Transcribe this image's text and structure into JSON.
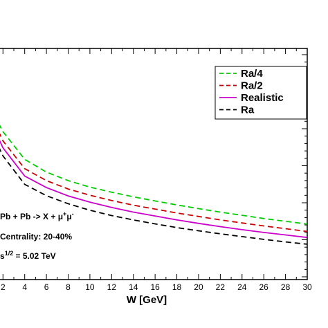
{
  "chart_data": {
    "type": "line",
    "xlabel": "W [GeV]",
    "xlim": [
      1.6,
      30
    ],
    "x_ticks": [
      2,
      4,
      6,
      8,
      10,
      12,
      14,
      16,
      18,
      20,
      22,
      24,
      26,
      28,
      30
    ],
    "ylim": [
      0,
      1
    ],
    "grid": false,
    "legend_position": "top-right",
    "series": [
      {
        "name": "Ra/4",
        "color": "#00cc00",
        "dash": "dashed",
        "x": [
          1.6,
          2,
          4,
          6,
          8,
          10,
          12,
          14,
          16,
          18,
          20,
          22,
          24,
          26,
          28,
          30
        ],
        "y": [
          0.675,
          0.64,
          0.52,
          0.465,
          0.428,
          0.4,
          0.378,
          0.358,
          0.34,
          0.323,
          0.307,
          0.292,
          0.278,
          0.264,
          0.252,
          0.24
        ]
      },
      {
        "name": "Ra/2",
        "color": "#cc0000",
        "dash": "dashed",
        "x": [
          1.6,
          2,
          4,
          6,
          8,
          10,
          12,
          14,
          16,
          18,
          20,
          22,
          24,
          26,
          28,
          30
        ],
        "y": [
          0.64,
          0.6,
          0.48,
          0.428,
          0.392,
          0.365,
          0.342,
          0.322,
          0.305,
          0.288,
          0.273,
          0.258,
          0.245,
          0.232,
          0.22,
          0.208
        ]
      },
      {
        "name": "Realistic",
        "color": "#cc00cc",
        "dash": "solid",
        "x": [
          1.6,
          2,
          4,
          6,
          8,
          10,
          12,
          14,
          16,
          18,
          20,
          22,
          24,
          26,
          28,
          30
        ],
        "y": [
          0.61,
          0.57,
          0.448,
          0.398,
          0.362,
          0.335,
          0.312,
          0.292,
          0.275,
          0.258,
          0.243,
          0.229,
          0.216,
          0.204,
          0.193,
          0.182
        ]
      },
      {
        "name": "Ra",
        "color": "#000000",
        "dash": "dashed",
        "x": [
          1.6,
          2,
          4,
          6,
          8,
          10,
          12,
          14,
          16,
          18,
          20,
          22,
          24,
          26,
          28,
          30
        ],
        "y": [
          0.575,
          0.535,
          0.412,
          0.363,
          0.328,
          0.3,
          0.277,
          0.258,
          0.241,
          0.225,
          0.211,
          0.198,
          0.186,
          0.174,
          0.163,
          0.153
        ]
      }
    ],
    "annotations": [
      {
        "id": "reaction",
        "parts": [
          "Pb + Pb  ->  X + μ",
          "+",
          "μ",
          "-"
        ]
      },
      {
        "id": "centrality",
        "text": "Centrality: 20-40%"
      },
      {
        "id": "energy",
        "parts": [
          "s",
          "1/2",
          " = 5.02 TeV"
        ]
      }
    ]
  }
}
